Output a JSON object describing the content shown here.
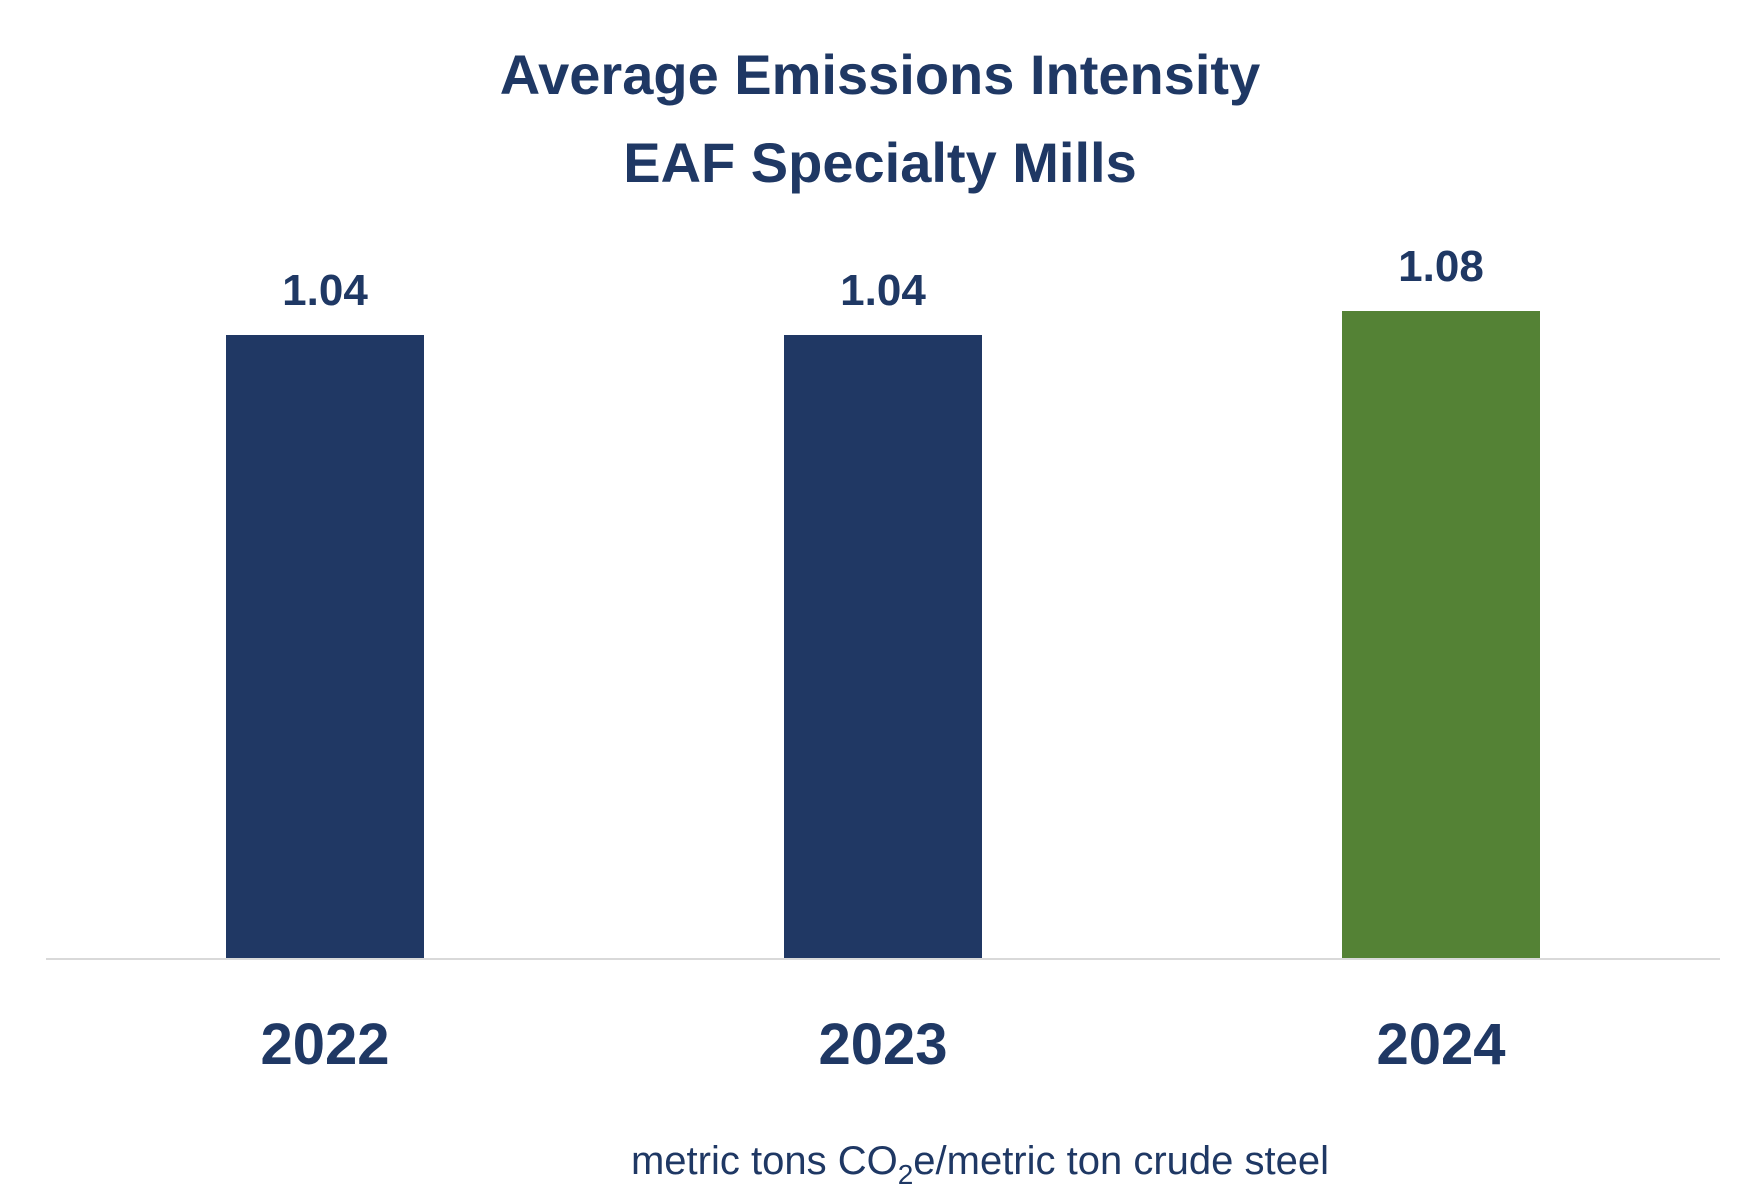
{
  "chart_data": {
    "type": "bar",
    "title": "Average Emissions Intensity",
    "subtitle": "EAF Specialty Mills",
    "categories": [
      "2022",
      "2023",
      "2024"
    ],
    "values": [
      1.04,
      1.04,
      1.08
    ],
    "value_labels": [
      "1.04",
      "1.04",
      "1.08"
    ],
    "xlabel": "",
    "ylabel": "",
    "unit_label": {
      "prefix": "metric tons CO",
      "subscript": "2",
      "suffix": "e/metric ton crude steel"
    },
    "ylim": [
      0,
      1.2
    ],
    "grid": false,
    "legend": "none",
    "colors": {
      "default_bar": "#203864",
      "highlight_bar": "#548235",
      "text": "#1f3864",
      "axis": "#d9d9d9"
    },
    "highlight_index": 2
  }
}
